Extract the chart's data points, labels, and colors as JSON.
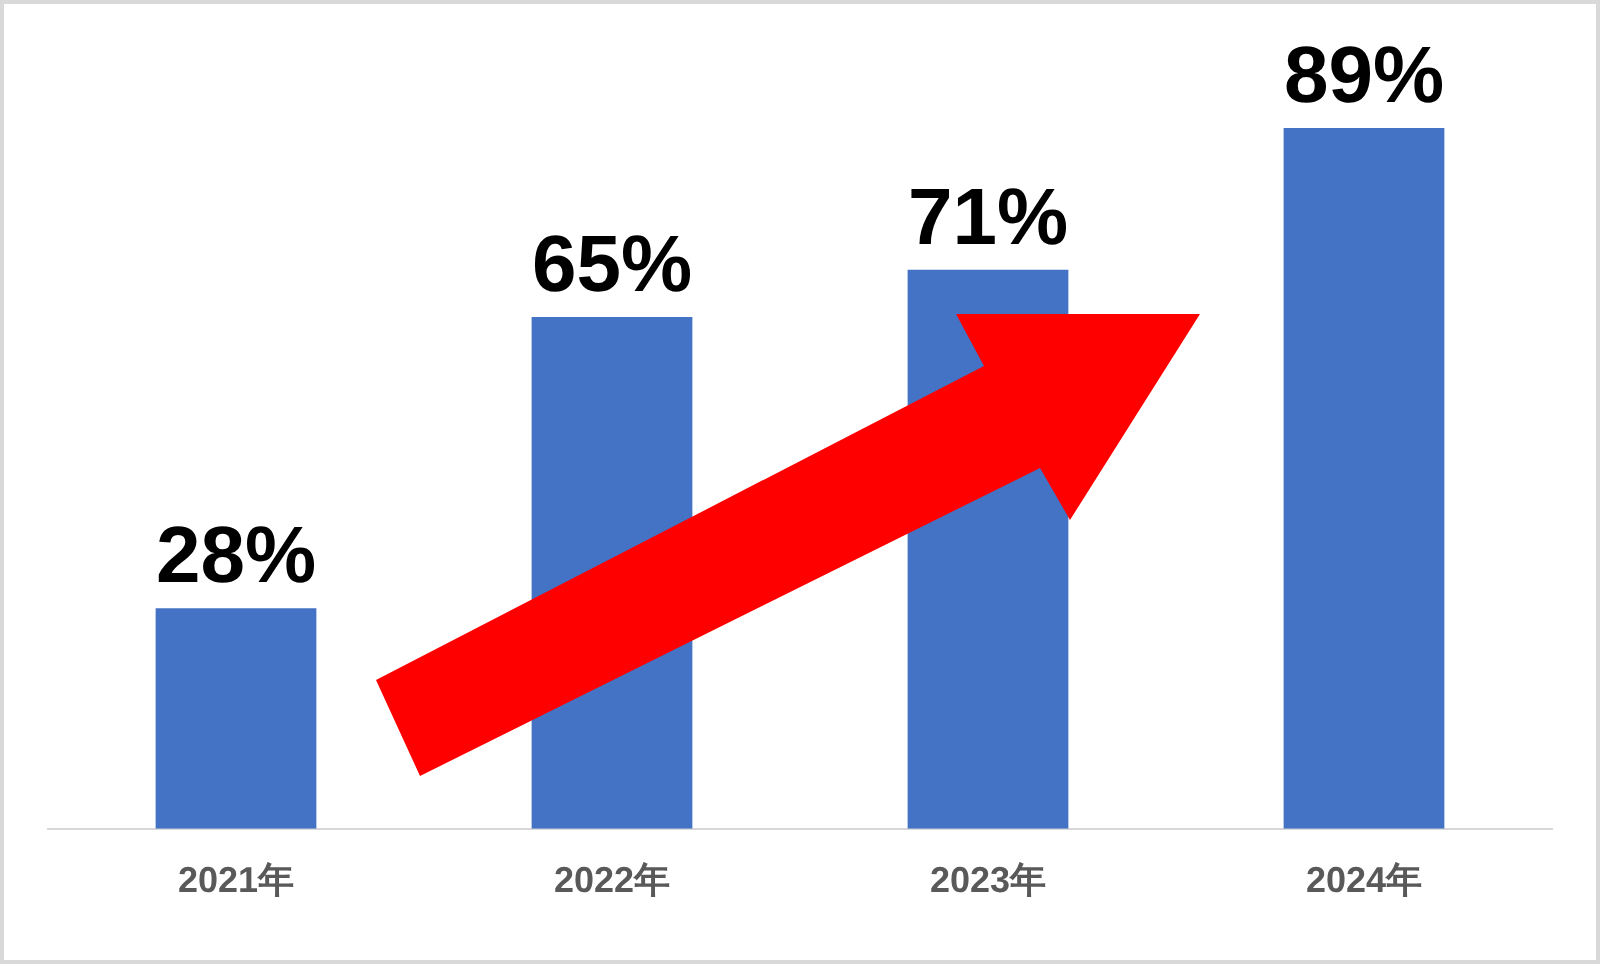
{
  "chart_data": {
    "type": "bar",
    "categories": [
      "2021年",
      "2022年",
      "2023年",
      "2024年"
    ],
    "values": [
      28,
      65,
      71,
      89
    ],
    "value_labels": [
      "28%",
      "65%",
      "71%",
      "89%"
    ],
    "color": "#4472c4",
    "tick_labels": "x",
    "grid": false,
    "legend": false
  }
}
